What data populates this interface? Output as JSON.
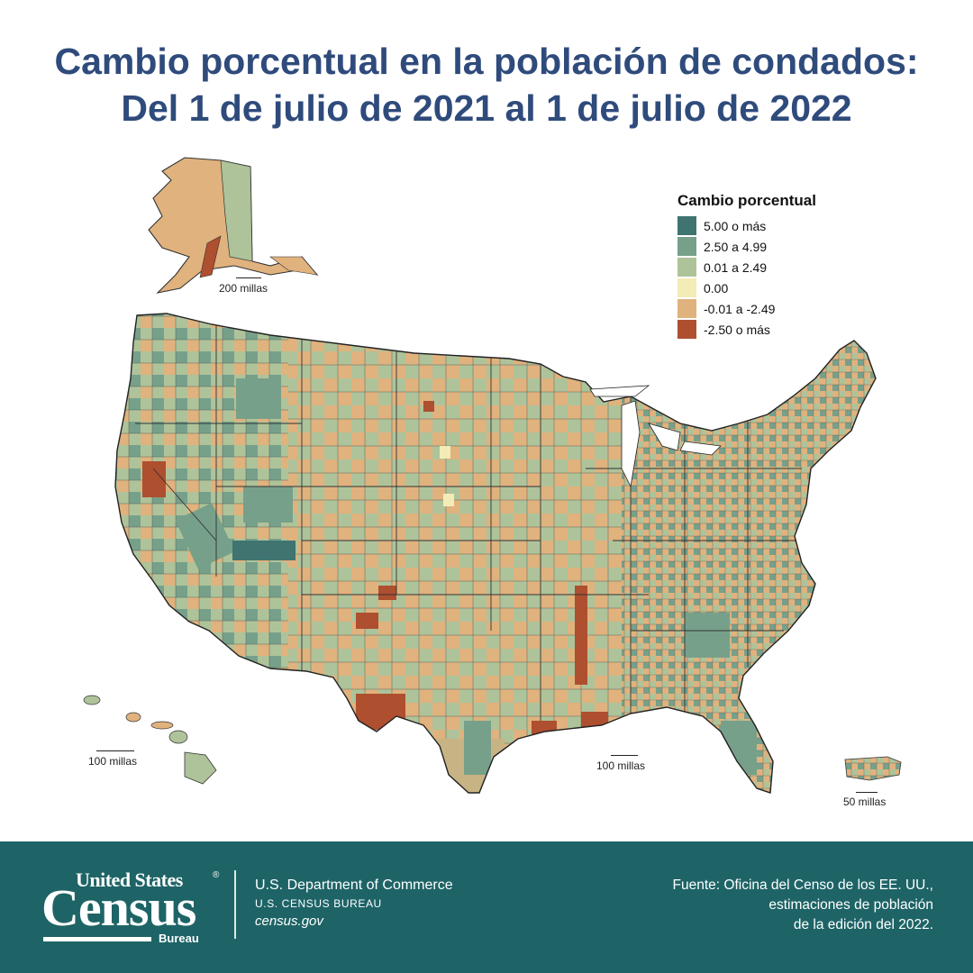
{
  "title": {
    "line1": "Cambio porcentual en la población de condados:",
    "line2": "Del 1 de julio de 2021 al 1 de julio de 2022"
  },
  "legend": {
    "title": "Cambio porcentual",
    "items": [
      {
        "label": "5.00 o más",
        "color": "#3f7470"
      },
      {
        "label": "2.50 a 4.99",
        "color": "#77a08a"
      },
      {
        "label": "0.01 a 2.49",
        "color": "#aec39a"
      },
      {
        "label": "0.00",
        "color": "#f3ecb6"
      },
      {
        "label": "-0.01 a -2.49",
        "color": "#e0b27e"
      },
      {
        "label": "-2.50 o más",
        "color": "#ae4f2f"
      }
    ]
  },
  "scales": {
    "alaska": "200 millas",
    "hawaii": "100 millas",
    "conus": "100 millas",
    "puerto_rico": "50 millas"
  },
  "footer": {
    "logo_top": "United States",
    "logo_main": "Census",
    "logo_bureau": "Bureau",
    "logo_reg": "®",
    "dept_line1": "U.S. Department of Commerce",
    "dept_line2": "U.S. CENSUS BUREAU",
    "dept_line3": "census.gov",
    "source_line1": "Fuente: Oficina del Censo de los EE. UU.,",
    "source_line2": "estimaciones de población",
    "source_line3": "de la edición del 2022."
  }
}
